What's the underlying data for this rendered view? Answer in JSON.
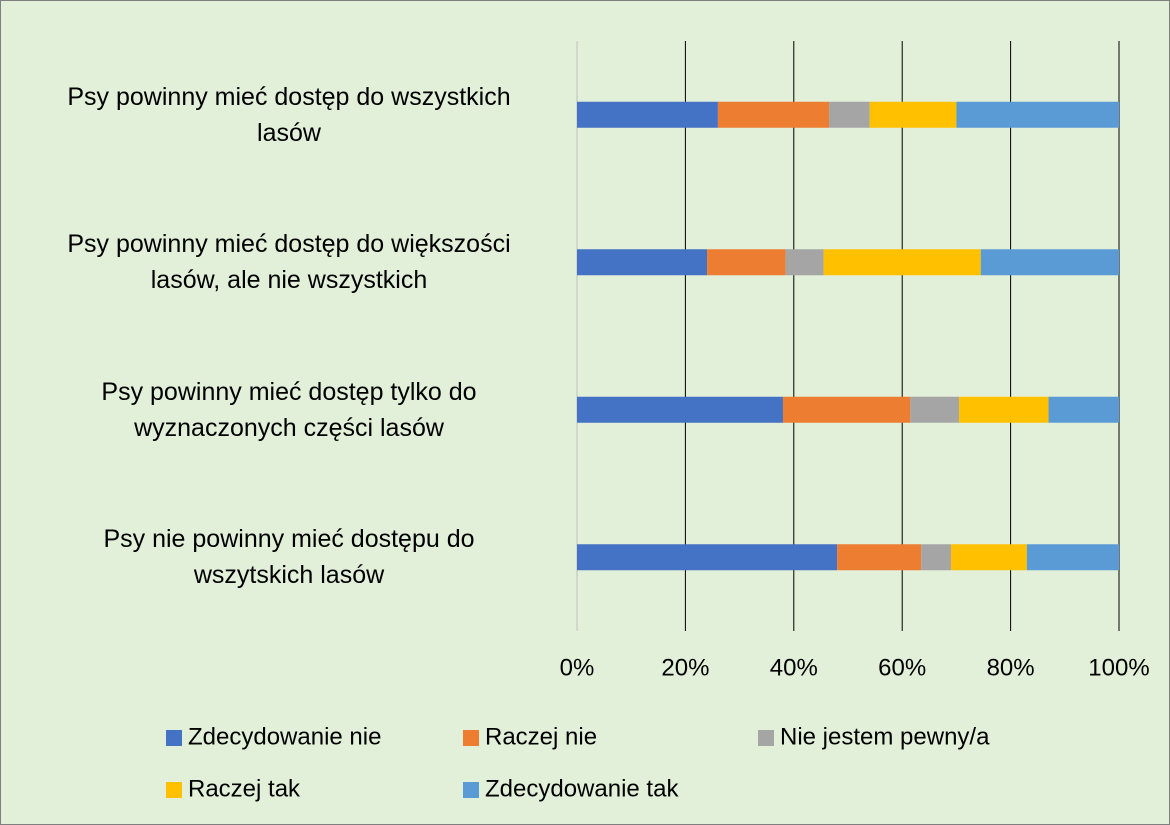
{
  "chart_data": {
    "type": "stacked-bar-horizontal",
    "categories": [
      "Psy powinny mieć dostęp do wszystkich\nlasów",
      "Psy powinny mieć dostęp do większości\nlasów, ale nie wszystkich",
      "Psy powinny mieć dostęp tylko do\nwyznaczonych części lasów",
      "Psy nie powinny mieć dostępu do\nwszytskich lasów"
    ],
    "series": [
      {
        "name": "Zdecydowanie nie",
        "color": "#4472c4",
        "values": [
          26,
          24,
          38,
          48
        ]
      },
      {
        "name": "Raczej nie",
        "color": "#ed7d31",
        "values": [
          20.5,
          14.5,
          23.5,
          15.5
        ]
      },
      {
        "name": "Nie jestem pewny/a",
        "color": "#a5a5a5",
        "values": [
          7.5,
          7,
          9,
          5.5
        ]
      },
      {
        "name": "Raczej tak",
        "color": "#ffc000",
        "values": [
          16,
          29,
          16.5,
          14
        ]
      },
      {
        "name": "Zdecydowanie tak",
        "color": "#5b9bd5",
        "values": [
          30,
          25.5,
          13,
          17
        ]
      }
    ],
    "xlim": [
      0,
      100
    ],
    "xticks": [
      {
        "value": 0,
        "label": "0%"
      },
      {
        "value": 20,
        "label": "20%"
      },
      {
        "value": 40,
        "label": "40%"
      },
      {
        "value": 60,
        "label": "60%"
      },
      {
        "value": 80,
        "label": "80%"
      },
      {
        "value": 100,
        "label": "100%"
      }
    ],
    "grid": true,
    "legend": "bottom"
  }
}
